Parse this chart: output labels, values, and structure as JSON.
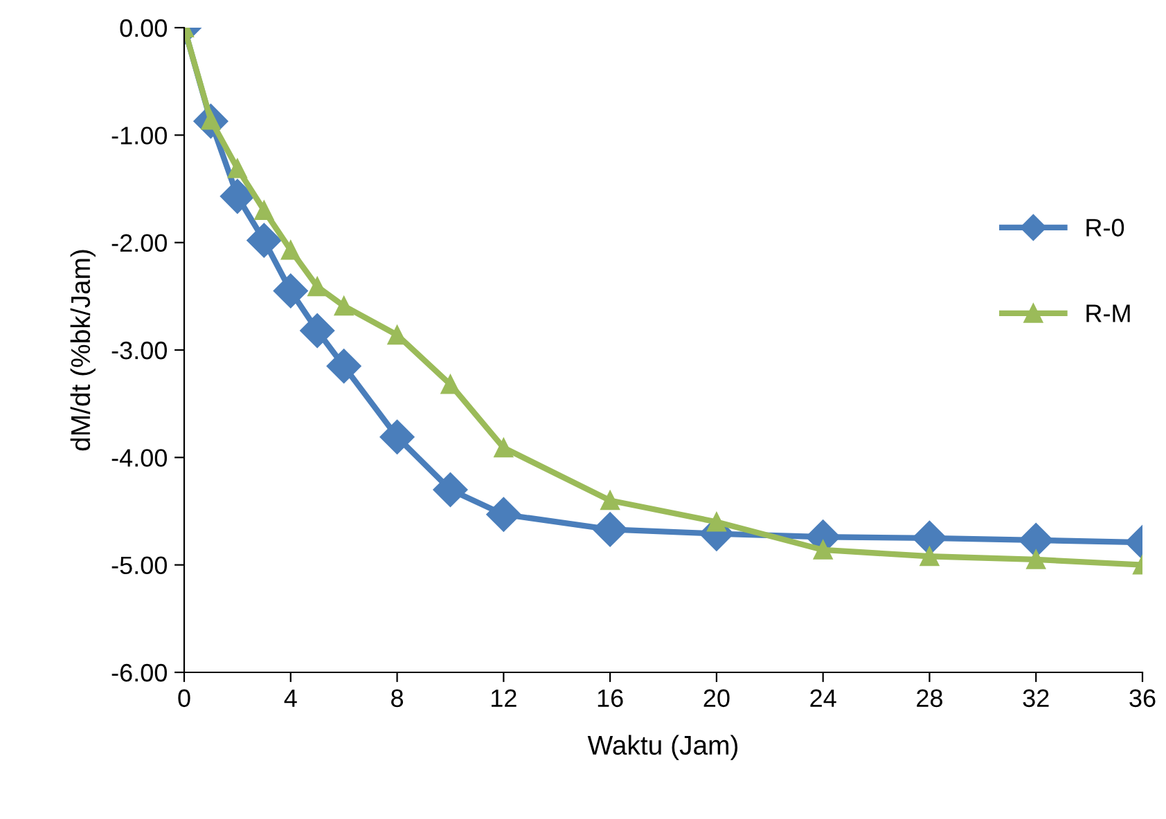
{
  "chart_data": {
    "type": "line",
    "xlabel": "Waktu (Jam)",
    "ylabel": "dM/dt (%bk/Jam)",
    "x": [
      0,
      1,
      2,
      3,
      4,
      5,
      6,
      8,
      10,
      12,
      16,
      20,
      24,
      28,
      32,
      36
    ],
    "series": [
      {
        "name": "R-0",
        "color": "#4a7ebb",
        "marker": "diamond",
        "values": [
          0,
          -0.87,
          -1.57,
          -1.98,
          -2.45,
          -2.82,
          -3.15,
          -3.81,
          -4.3,
          -4.53,
          -4.67,
          -4.71,
          -4.74,
          -4.75,
          -4.77,
          -4.79
        ]
      },
      {
        "name": "R-M",
        "color": "#9bbb59",
        "marker": "triangle",
        "values": [
          0,
          -0.86,
          -1.31,
          -1.7,
          -2.07,
          -2.41,
          -2.59,
          -2.86,
          -3.32,
          -3.91,
          -4.4,
          -4.6,
          -4.86,
          -4.92,
          -4.95,
          -5.0
        ]
      }
    ],
    "xlim": [
      0,
      36
    ],
    "xticks": [
      0,
      4,
      8,
      12,
      16,
      20,
      24,
      28,
      32,
      36
    ],
    "ylim": [
      -6,
      0
    ],
    "yticks": [
      {
        "value": -6,
        "label": "-6.00"
      },
      {
        "value": -5,
        "label": "-5.00"
      },
      {
        "value": -4,
        "label": "-4.00"
      },
      {
        "value": -3,
        "label": "-3.00"
      },
      {
        "value": -2,
        "label": "-2.00"
      },
      {
        "value": -1,
        "label": "-1.00"
      },
      {
        "value": 0,
        "label": "0.00"
      }
    ],
    "grid": false,
    "legend": "right",
    "line_style": "solid"
  }
}
